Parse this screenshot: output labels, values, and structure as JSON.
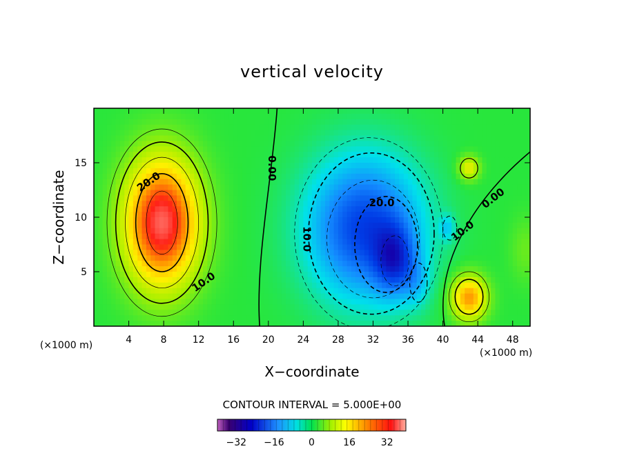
{
  "chart_data": {
    "type": "heatmap",
    "title": "vertical velocity",
    "xlabel": "X−coordinate",
    "ylabel": "Z−coordinate",
    "x_unit_left": "(×1000 m)",
    "x_unit_right": "(×1000 m)",
    "xlim": [
      0,
      50
    ],
    "ylim": [
      0,
      20
    ],
    "x_ticks": [
      "4",
      "8",
      "12",
      "16",
      "20",
      "24",
      "28",
      "32",
      "36",
      "40",
      "44",
      "48"
    ],
    "y_ticks": [
      "5",
      "10",
      "15"
    ],
    "contour_interval_label": "CONTOUR INTERVAL = 5.000E+00",
    "colorbar": {
      "range": [
        -40,
        40
      ],
      "ticks": [
        "−32",
        "−16",
        "0",
        "16",
        "32"
      ]
    },
    "contour_labels": [
      {
        "text": "20.0",
        "x": 6.5,
        "z": 13.0
      },
      {
        "text": "10.0",
        "x": 12.8,
        "z": 3.8
      },
      {
        "text": "0.00",
        "x": 20.0,
        "z": 14.5
      },
      {
        "text": "10.0",
        "x": 24.0,
        "z": 8.0
      },
      {
        "text": "20.0",
        "x": 33.0,
        "z": 11.0
      },
      {
        "text": "10.0",
        "x": 42.5,
        "z": 8.5
      },
      {
        "text": "0.00",
        "x": 46.0,
        "z": 11.5
      }
    ],
    "features": [
      {
        "name": "updraft",
        "x": 7.8,
        "z": 9.5,
        "peak": 36
      },
      {
        "name": "downdraft",
        "x": 34.5,
        "z": 6.0,
        "peak": -38
      },
      {
        "name": "secondary updraft",
        "x": 43.0,
        "z": 2.5,
        "peak": 24
      },
      {
        "name": "small updraft",
        "x": 43.0,
        "z": 14.5,
        "peak": 14
      }
    ]
  }
}
